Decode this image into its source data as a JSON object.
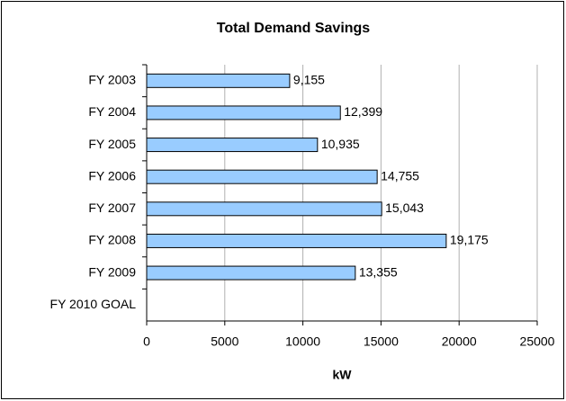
{
  "chart_data": {
    "type": "bar",
    "orientation": "horizontal",
    "title": "Total Demand Savings",
    "x_label": "kW",
    "categories": [
      "FY 2003",
      "FY 2004",
      "FY 2005",
      "FY 2006",
      "FY 2007",
      "FY 2008",
      "FY 2009",
      "FY 2010 GOAL"
    ],
    "values": [
      9155,
      12399,
      10935,
      14755,
      15043,
      19175,
      13355,
      null
    ],
    "value_labels": [
      "9,155",
      "12,399",
      "10,935",
      "14,755",
      "15,043",
      "19,175",
      "13,355",
      null
    ],
    "color": "#99ccff",
    "xlim": [
      0,
      25000
    ],
    "xticks": [
      0,
      5000,
      10000,
      15000,
      20000,
      25000
    ],
    "grid": true
  }
}
